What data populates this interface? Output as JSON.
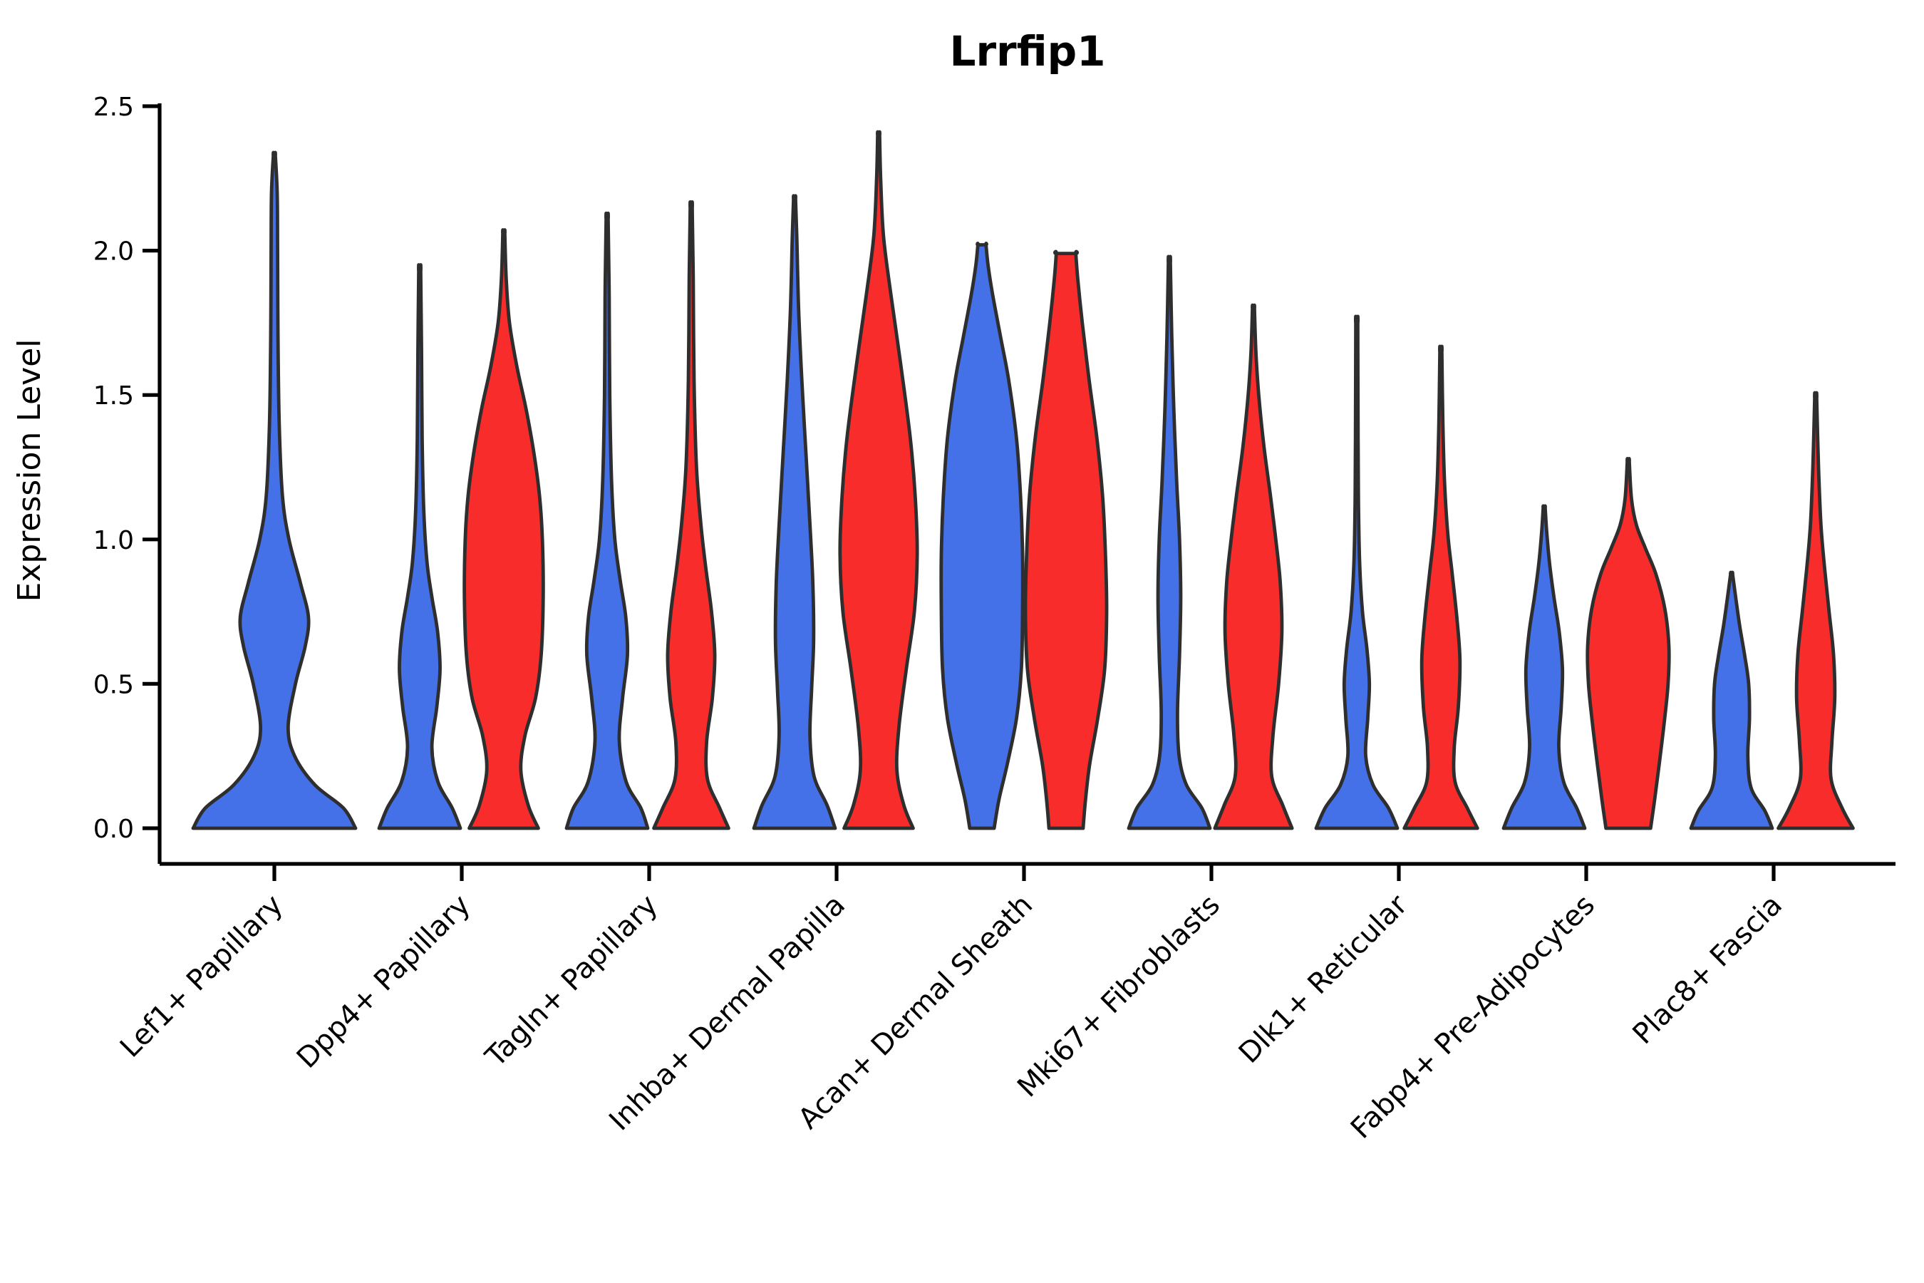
{
  "title": "Lrrfip1",
  "axes": {
    "ylabel": "Expression Level",
    "ytick_labels": [
      "0.0",
      "0.5",
      "1.0",
      "1.5",
      "2.0",
      "2.5"
    ],
    "ytick_values": [
      0.0,
      0.5,
      1.0,
      1.5,
      2.0,
      2.5
    ]
  },
  "colors": {
    "blue": "#4470E8",
    "red": "#F92C2C",
    "edge": "#2E2E2E",
    "axis": "#000000",
    "background": "#ffffff"
  },
  "chart_data": {
    "type": "violin",
    "title": "Lrrfip1",
    "xlabel": "",
    "ylabel": "Expression Level",
    "ylim": [
      0,
      2.5
    ],
    "yticks": [
      0.0,
      0.5,
      1.0,
      1.5,
      2.0,
      2.5
    ],
    "grid": false,
    "legend": "none",
    "categories": [
      "Lef1+ Papillary",
      "Dpp4+ Papillary",
      "Tagln+ Papillary",
      "Inhba+ Dermal Papilla",
      "Acan+ Dermal Sheath",
      "Mki67+ Fibroblasts",
      "Dlk1+ Reticular",
      "Fabp4+ Pre-Adipocytes",
      "Plac8+ Fascia"
    ],
    "series_colors": {
      "blue": "#4470E8",
      "red": "#F92C2C"
    },
    "violins": [
      {
        "category_index": 0,
        "series": "blue",
        "split": "single",
        "max_expression": 2.33,
        "capped": false,
        "profile": [
          [
            0,
            1.0
          ],
          [
            0.07,
            0.85
          ],
          [
            0.15,
            0.5
          ],
          [
            0.25,
            0.25
          ],
          [
            0.35,
            0.17
          ],
          [
            0.5,
            0.26
          ],
          [
            0.63,
            0.38
          ],
          [
            0.73,
            0.42
          ],
          [
            0.85,
            0.32
          ],
          [
            1.0,
            0.18
          ],
          [
            1.15,
            0.1
          ],
          [
            1.4,
            0.06
          ],
          [
            1.7,
            0.045
          ],
          [
            2.0,
            0.04
          ],
          [
            2.2,
            0.035
          ],
          [
            2.33,
            0.012
          ]
        ]
      },
      {
        "category_index": 1,
        "series": "blue",
        "split": "left",
        "max_expression": 1.93,
        "capped": false,
        "profile": [
          [
            0,
            1.0
          ],
          [
            0.07,
            0.8
          ],
          [
            0.16,
            0.45
          ],
          [
            0.28,
            0.3
          ],
          [
            0.42,
            0.42
          ],
          [
            0.55,
            0.5
          ],
          [
            0.68,
            0.44
          ],
          [
            0.8,
            0.3
          ],
          [
            0.92,
            0.18
          ],
          [
            1.1,
            0.1
          ],
          [
            1.35,
            0.06
          ],
          [
            1.65,
            0.045
          ],
          [
            1.93,
            0.012
          ]
        ]
      },
      {
        "category_index": 1,
        "series": "red",
        "split": "right",
        "max_expression": 2.06,
        "capped": false,
        "profile": [
          [
            0,
            0.85
          ],
          [
            0.08,
            0.6
          ],
          [
            0.2,
            0.42
          ],
          [
            0.32,
            0.52
          ],
          [
            0.45,
            0.78
          ],
          [
            0.6,
            0.92
          ],
          [
            0.8,
            0.97
          ],
          [
            1.0,
            0.95
          ],
          [
            1.15,
            0.88
          ],
          [
            1.3,
            0.74
          ],
          [
            1.45,
            0.55
          ],
          [
            1.6,
            0.32
          ],
          [
            1.75,
            0.14
          ],
          [
            1.9,
            0.06
          ],
          [
            2.06,
            0.012
          ]
        ]
      },
      {
        "category_index": 2,
        "series": "blue",
        "split": "left",
        "max_expression": 2.11,
        "capped": false,
        "profile": [
          [
            0,
            1.0
          ],
          [
            0.07,
            0.83
          ],
          [
            0.16,
            0.47
          ],
          [
            0.3,
            0.3
          ],
          [
            0.45,
            0.38
          ],
          [
            0.6,
            0.5
          ],
          [
            0.73,
            0.46
          ],
          [
            0.86,
            0.32
          ],
          [
            1.0,
            0.19
          ],
          [
            1.2,
            0.11
          ],
          [
            1.5,
            0.065
          ],
          [
            1.85,
            0.05
          ],
          [
            2.11,
            0.012
          ]
        ]
      },
      {
        "category_index": 2,
        "series": "red",
        "split": "right",
        "max_expression": 2.15,
        "capped": false,
        "profile": [
          [
            0,
            0.92
          ],
          [
            0.07,
            0.7
          ],
          [
            0.17,
            0.4
          ],
          [
            0.3,
            0.38
          ],
          [
            0.45,
            0.52
          ],
          [
            0.6,
            0.58
          ],
          [
            0.75,
            0.5
          ],
          [
            0.9,
            0.36
          ],
          [
            1.05,
            0.24
          ],
          [
            1.25,
            0.13
          ],
          [
            1.55,
            0.07
          ],
          [
            1.9,
            0.05
          ],
          [
            2.15,
            0.012
          ]
        ]
      },
      {
        "category_index": 3,
        "series": "blue",
        "split": "left",
        "max_expression": 2.18,
        "capped": false,
        "profile": [
          [
            0,
            1.0
          ],
          [
            0.08,
            0.8
          ],
          [
            0.18,
            0.48
          ],
          [
            0.32,
            0.38
          ],
          [
            0.48,
            0.42
          ],
          [
            0.65,
            0.47
          ],
          [
            0.85,
            0.45
          ],
          [
            1.05,
            0.38
          ],
          [
            1.3,
            0.28
          ],
          [
            1.55,
            0.18
          ],
          [
            1.8,
            0.1
          ],
          [
            2.05,
            0.055
          ],
          [
            2.18,
            0.012
          ]
        ]
      },
      {
        "category_index": 3,
        "series": "red",
        "split": "right",
        "max_expression": 2.4,
        "capped": false,
        "profile": [
          [
            0,
            0.85
          ],
          [
            0.08,
            0.62
          ],
          [
            0.2,
            0.45
          ],
          [
            0.35,
            0.5
          ],
          [
            0.55,
            0.68
          ],
          [
            0.75,
            0.88
          ],
          [
            0.95,
            0.95
          ],
          [
            1.15,
            0.9
          ],
          [
            1.35,
            0.78
          ],
          [
            1.6,
            0.55
          ],
          [
            1.85,
            0.3
          ],
          [
            2.05,
            0.12
          ],
          [
            2.25,
            0.05
          ],
          [
            2.4,
            0.012
          ]
        ]
      },
      {
        "category_index": 4,
        "series": "blue",
        "split": "left",
        "max_expression": 2.02,
        "capped": true,
        "profile": [
          [
            0,
            0.3
          ],
          [
            0.1,
            0.42
          ],
          [
            0.22,
            0.62
          ],
          [
            0.38,
            0.85
          ],
          [
            0.55,
            0.97
          ],
          [
            0.75,
            1.0
          ],
          [
            0.95,
            1.0
          ],
          [
            1.15,
            0.95
          ],
          [
            1.35,
            0.85
          ],
          [
            1.55,
            0.66
          ],
          [
            1.7,
            0.46
          ],
          [
            1.85,
            0.26
          ],
          [
            1.95,
            0.15
          ],
          [
            2.02,
            0.1
          ]
        ]
      },
      {
        "category_index": 4,
        "series": "red",
        "split": "right",
        "max_expression": 1.99,
        "capped": true,
        "profile": [
          [
            0,
            0.42
          ],
          [
            0.1,
            0.48
          ],
          [
            0.22,
            0.58
          ],
          [
            0.38,
            0.78
          ],
          [
            0.55,
            0.95
          ],
          [
            0.75,
            1.0
          ],
          [
            0.95,
            0.97
          ],
          [
            1.15,
            0.9
          ],
          [
            1.35,
            0.76
          ],
          [
            1.55,
            0.57
          ],
          [
            1.75,
            0.4
          ],
          [
            1.9,
            0.29
          ],
          [
            1.99,
            0.24
          ]
        ]
      },
      {
        "category_index": 5,
        "series": "blue",
        "split": "left",
        "max_expression": 1.96,
        "capped": false,
        "profile": [
          [
            0,
            1.0
          ],
          [
            0.07,
            0.8
          ],
          [
            0.15,
            0.42
          ],
          [
            0.25,
            0.24
          ],
          [
            0.4,
            0.2
          ],
          [
            0.6,
            0.25
          ],
          [
            0.8,
            0.28
          ],
          [
            1.0,
            0.25
          ],
          [
            1.2,
            0.18
          ],
          [
            1.45,
            0.11
          ],
          [
            1.7,
            0.06
          ],
          [
            1.96,
            0.012
          ]
        ]
      },
      {
        "category_index": 5,
        "series": "red",
        "split": "right",
        "max_expression": 1.8,
        "capped": false,
        "profile": [
          [
            0,
            0.95
          ],
          [
            0.08,
            0.72
          ],
          [
            0.18,
            0.45
          ],
          [
            0.32,
            0.48
          ],
          [
            0.5,
            0.62
          ],
          [
            0.68,
            0.7
          ],
          [
            0.85,
            0.66
          ],
          [
            1.0,
            0.55
          ],
          [
            1.15,
            0.42
          ],
          [
            1.32,
            0.26
          ],
          [
            1.5,
            0.13
          ],
          [
            1.65,
            0.06
          ],
          [
            1.8,
            0.012
          ]
        ]
      },
      {
        "category_index": 6,
        "series": "blue",
        "split": "left",
        "max_expression": 1.75,
        "capped": false,
        "profile": [
          [
            0,
            1.0
          ],
          [
            0.07,
            0.78
          ],
          [
            0.15,
            0.4
          ],
          [
            0.25,
            0.22
          ],
          [
            0.38,
            0.27
          ],
          [
            0.5,
            0.31
          ],
          [
            0.62,
            0.25
          ],
          [
            0.75,
            0.14
          ],
          [
            0.92,
            0.07
          ],
          [
            1.15,
            0.04
          ],
          [
            1.45,
            0.03
          ],
          [
            1.75,
            0.012
          ]
        ]
      },
      {
        "category_index": 6,
        "series": "red",
        "split": "right",
        "max_expression": 1.65,
        "capped": false,
        "profile": [
          [
            0,
            0.9
          ],
          [
            0.07,
            0.65
          ],
          [
            0.16,
            0.35
          ],
          [
            0.28,
            0.33
          ],
          [
            0.42,
            0.43
          ],
          [
            0.58,
            0.47
          ],
          [
            0.72,
            0.4
          ],
          [
            0.88,
            0.28
          ],
          [
            1.02,
            0.17
          ],
          [
            1.2,
            0.09
          ],
          [
            1.4,
            0.05
          ],
          [
            1.65,
            0.012
          ]
        ]
      },
      {
        "category_index": 7,
        "series": "blue",
        "split": "left",
        "max_expression": 1.11,
        "capped": false,
        "profile": [
          [
            0,
            1.0
          ],
          [
            0.07,
            0.8
          ],
          [
            0.16,
            0.48
          ],
          [
            0.28,
            0.36
          ],
          [
            0.42,
            0.42
          ],
          [
            0.55,
            0.45
          ],
          [
            0.68,
            0.37
          ],
          [
            0.8,
            0.24
          ],
          [
            0.92,
            0.13
          ],
          [
            1.03,
            0.06
          ],
          [
            1.11,
            0.012
          ]
        ]
      },
      {
        "category_index": 7,
        "series": "red",
        "split": "right",
        "max_expression": 1.27,
        "capped": false,
        "profile": [
          [
            0,
            0.55
          ],
          [
            0.1,
            0.65
          ],
          [
            0.22,
            0.76
          ],
          [
            0.36,
            0.88
          ],
          [
            0.5,
            0.98
          ],
          [
            0.63,
            1.0
          ],
          [
            0.76,
            0.9
          ],
          [
            0.88,
            0.68
          ],
          [
            0.97,
            0.42
          ],
          [
            1.05,
            0.2
          ],
          [
            1.14,
            0.08
          ],
          [
            1.27,
            0.012
          ]
        ]
      },
      {
        "category_index": 8,
        "series": "blue",
        "split": "left",
        "max_expression": 0.88,
        "capped": false,
        "profile": [
          [
            0,
            1.0
          ],
          [
            0.06,
            0.82
          ],
          [
            0.14,
            0.48
          ],
          [
            0.25,
            0.4
          ],
          [
            0.38,
            0.44
          ],
          [
            0.5,
            0.42
          ],
          [
            0.6,
            0.32
          ],
          [
            0.7,
            0.2
          ],
          [
            0.8,
            0.1
          ],
          [
            0.88,
            0.012
          ]
        ]
      },
      {
        "category_index": 8,
        "series": "red",
        "split": "right",
        "max_expression": 1.49,
        "capped": false,
        "profile": [
          [
            0,
            0.92
          ],
          [
            0.07,
            0.65
          ],
          [
            0.17,
            0.38
          ],
          [
            0.3,
            0.4
          ],
          [
            0.45,
            0.47
          ],
          [
            0.6,
            0.44
          ],
          [
            0.75,
            0.33
          ],
          [
            0.9,
            0.22
          ],
          [
            1.05,
            0.13
          ],
          [
            1.25,
            0.07
          ],
          [
            1.49,
            0.012
          ]
        ]
      }
    ]
  }
}
